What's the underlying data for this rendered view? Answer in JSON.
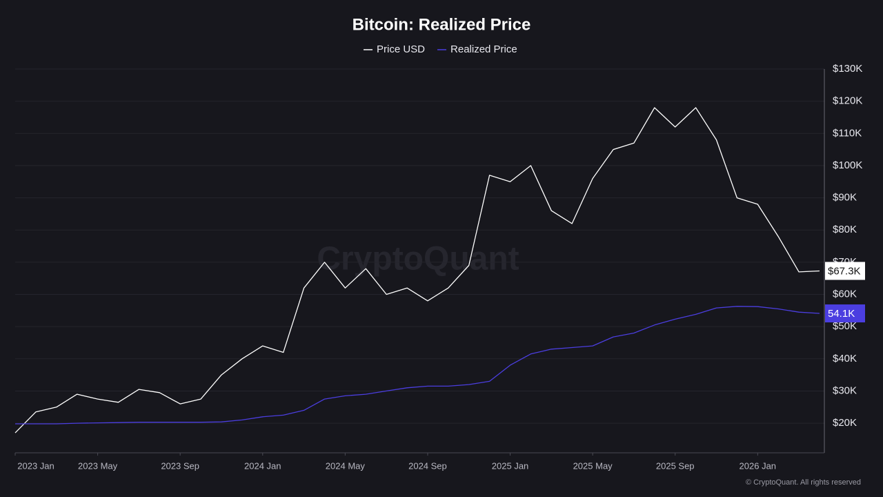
{
  "chart_data": {
    "type": "line",
    "title": "Bitcoin: Realized Price",
    "watermark": "CryptoQuant",
    "footer": "© CryptoQuant. All rights reserved",
    "x": [
      "2023-01",
      "2023-02",
      "2023-03",
      "2023-04",
      "2023-05",
      "2023-06",
      "2023-07",
      "2023-08",
      "2023-09",
      "2023-10",
      "2023-11",
      "2023-12",
      "2024-01",
      "2024-02",
      "2024-03",
      "2024-04",
      "2024-05",
      "2024-06",
      "2024-07",
      "2024-08",
      "2024-09",
      "2024-10",
      "2024-11",
      "2024-12",
      "2025-01",
      "2025-02",
      "2025-03",
      "2025-04",
      "2025-05",
      "2025-06",
      "2025-07",
      "2025-08",
      "2025-09",
      "2025-10",
      "2025-11",
      "2025-12",
      "2026-01",
      "2026-02",
      "2026-03",
      "2026-04"
    ],
    "xlim": [
      "2023-01",
      "2026-04"
    ],
    "xticks": [
      {
        "value": "2023-01",
        "label": "2023 Jan"
      },
      {
        "value": "2023-05",
        "label": "2023 May"
      },
      {
        "value": "2023-09",
        "label": "2023 Sep"
      },
      {
        "value": "2024-01",
        "label": "2024 Jan"
      },
      {
        "value": "2024-05",
        "label": "2024 May"
      },
      {
        "value": "2024-09",
        "label": "2024 Sep"
      },
      {
        "value": "2025-01",
        "label": "2025 Jan"
      },
      {
        "value": "2025-05",
        "label": "2025 May"
      },
      {
        "value": "2025-09",
        "label": "2025 Sep"
      },
      {
        "value": "2026-01",
        "label": "2026 Jan"
      }
    ],
    "ylim": [
      10800,
      130000
    ],
    "yticks": [
      {
        "value": 20000,
        "label": "$20K"
      },
      {
        "value": 30000,
        "label": "$30K"
      },
      {
        "value": 40000,
        "label": "$40K"
      },
      {
        "value": 50000,
        "label": "$50K"
      },
      {
        "value": 60000,
        "label": "$60K"
      },
      {
        "value": 70000,
        "label": "$70K"
      },
      {
        "value": 80000,
        "label": "$80K"
      },
      {
        "value": 90000,
        "label": "$90K"
      },
      {
        "value": 100000,
        "label": "$100K"
      },
      {
        "value": 110000,
        "label": "$110K"
      },
      {
        "value": 120000,
        "label": "$120K"
      },
      {
        "value": 130000,
        "label": "$130K"
      }
    ],
    "grid": true,
    "series": [
      {
        "name": "Price USD",
        "color": "#ffffff",
        "last_label": "$67.3K",
        "values": [
          17000,
          23500,
          25000,
          29000,
          27500,
          26500,
          30500,
          29500,
          26000,
          27500,
          35000,
          40000,
          44000,
          42000,
          62000,
          70000,
          62000,
          68000,
          60000,
          62000,
          58000,
          62000,
          69000,
          97000,
          95000,
          100000,
          86000,
          82000,
          96000,
          105000,
          107000,
          118000,
          112000,
          118000,
          108000,
          90000,
          88000,
          78000,
          67000,
          67300
        ]
      },
      {
        "name": "Realized Price",
        "color": "#4b3ee0",
        "last_label": "54.1K",
        "values": [
          19800,
          19800,
          19800,
          20000,
          20100,
          20200,
          20300,
          20300,
          20300,
          20300,
          20400,
          21000,
          22000,
          22500,
          24000,
          27500,
          28500,
          29000,
          30000,
          31000,
          31500,
          31500,
          32000,
          33000,
          38000,
          41500,
          43000,
          43500,
          44000,
          46800,
          48000,
          50500,
          52300,
          53800,
          55800,
          56300,
          56200,
          55500,
          54500,
          54100
        ]
      }
    ]
  }
}
